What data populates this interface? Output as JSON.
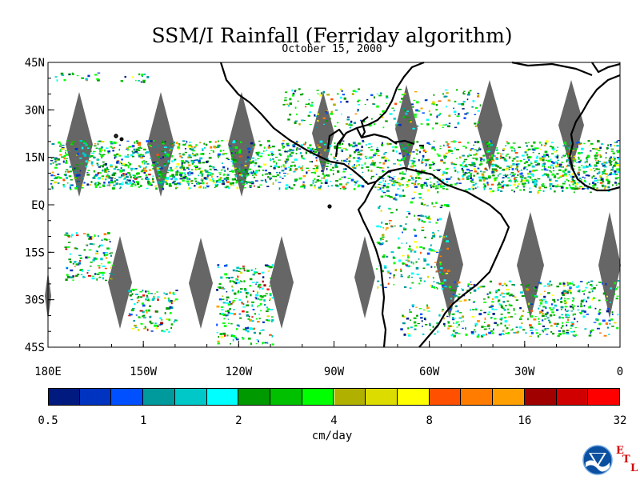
{
  "title": "SSM/I Rainfall (Ferriday algorithm)",
  "subtitle": "October 15, 2000",
  "map": {
    "lat_labels": [
      "45N",
      "30N",
      "15N",
      "EQ",
      "15S",
      "30S",
      "45S"
    ],
    "lon_labels": [
      "180E",
      "150W",
      "120W",
      "90W",
      "60W",
      "30W",
      "0"
    ],
    "lat_range": [
      -45,
      45
    ],
    "lon_range": [
      -180,
      0
    ],
    "swath_gap_color": "#666666",
    "land_outline": "black"
  },
  "colorbar": {
    "unit": "cm/day",
    "tick_labels": [
      "0.5",
      "1",
      "2",
      "4",
      "8",
      "16",
      "32"
    ],
    "colors": [
      "#001a80",
      "#0033c0",
      "#0050ff",
      "#00999c",
      "#00c8c8",
      "#00ffff",
      "#009900",
      "#00c000",
      "#00ff00",
      "#b0b000",
      "#dcdc00",
      "#ffff00",
      "#ff5000",
      "#ff7c00",
      "#ffa000",
      "#a00000",
      "#d00000",
      "#ff0000"
    ]
  },
  "logo": {
    "text": "NOAA",
    "etl_letters": [
      "E",
      "T",
      "L"
    ]
  }
}
